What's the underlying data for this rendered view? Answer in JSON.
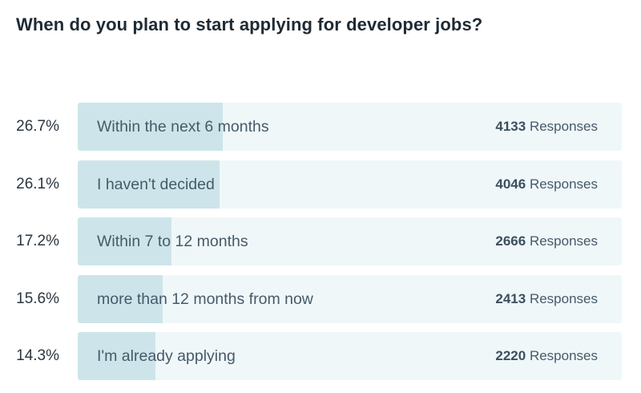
{
  "chart_data": {
    "type": "bar",
    "orientation": "horizontal",
    "title": "When do you plan to start applying for developer jobs?",
    "categories": [
      "Within the next 6 months",
      "I haven't decided",
      "Within 7 to 12 months",
      "more than 12 months from now",
      "I'm already applying"
    ],
    "percent_labels": [
      "26.7%",
      "26.1%",
      "17.2%",
      "15.6%",
      "14.3%"
    ],
    "percents": [
      26.7,
      26.1,
      17.2,
      15.6,
      14.3
    ],
    "values": [
      4133,
      4046,
      2666,
      2413,
      2220
    ],
    "response_suffix": "Responses",
    "colors": {
      "fill": "#cde5ea",
      "track": "#eff7f9",
      "label": "#465a69",
      "title": "#1f2a33"
    }
  }
}
